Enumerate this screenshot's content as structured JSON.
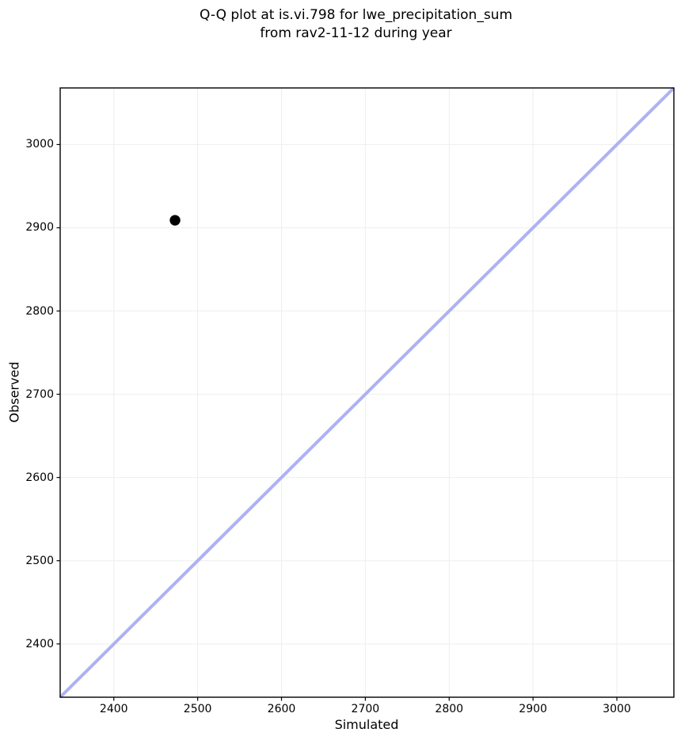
{
  "chart_data": {
    "type": "scatter",
    "title": "Q-Q plot at is.vi.798 for lwe_precipitation_sum\nfrom rav2-11-12 during year",
    "title_lines": [
      "Q-Q plot at is.vi.798 for lwe_precipitation_sum",
      "from rav2-11-12 during year"
    ],
    "xlabel": "Simulated",
    "ylabel": "Observed",
    "xlim": [
      2336,
      3068
    ],
    "ylim": [
      2336,
      3068
    ],
    "xticks": [
      2400,
      2500,
      2600,
      2700,
      2800,
      2900,
      3000
    ],
    "yticks": [
      2400,
      2500,
      2600,
      2700,
      2800,
      2900,
      3000
    ],
    "grid": true,
    "legend": null,
    "points": [
      {
        "x": 2473,
        "y": 2909
      }
    ],
    "identity_line": {
      "x1": 2336,
      "y1": 2336,
      "x2": 3068,
      "y2": 3068
    },
    "styles": {
      "identity_line_color": "#acb2f3",
      "identity_line_width": 4,
      "point_color": "#000000",
      "point_radius": 6.7,
      "grid_color": "#eeeeee",
      "spine_color": "#000000",
      "tick_color": "#000000",
      "background": "#ffffff"
    }
  }
}
